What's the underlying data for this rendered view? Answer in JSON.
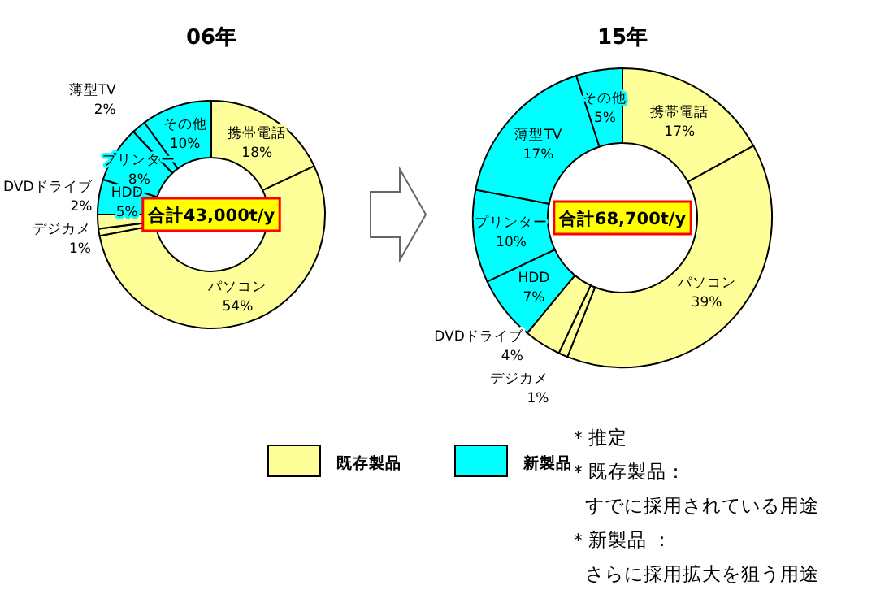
{
  "chart_data": [
    {
      "type": "donut",
      "title": "06年",
      "categories": [
        "携帯電話",
        "パソコン",
        "デジカメ",
        "DVDドライブ",
        "HDD",
        "プリンター",
        "薄型TV",
        "その他"
      ],
      "values": [
        18,
        54,
        1,
        2,
        5,
        8,
        2,
        10
      ],
      "value_labels": [
        "18%",
        "54%",
        "1%",
        "2%",
        "5%",
        "8%",
        "2%",
        "10%"
      ],
      "colors": [
        "#ffff99",
        "#ffff99",
        "#ffff99",
        "#ffff99",
        "#00ffff",
        "#00ffff",
        "#00ffff",
        "#00ffff"
      ],
      "annotations": [
        "合計43,000t/y"
      ]
    },
    {
      "type": "donut",
      "title": "15年",
      "categories": [
        "携帯電話",
        "パソコン",
        "デジカメ",
        "DVDドライブ",
        "HDD",
        "プリンター",
        "薄型TV",
        "その他"
      ],
      "values": [
        17,
        39,
        1,
        4,
        7,
        10,
        17,
        5
      ],
      "value_labels": [
        "17%",
        "39%",
        "1%",
        "4%",
        "7%",
        "10%",
        "17%",
        "5%"
      ],
      "colors": [
        "#ffff99",
        "#ffff99",
        "#ffff99",
        "#ffff99",
        "#00ffff",
        "#00ffff",
        "#00ffff",
        "#00ffff"
      ],
      "annotations": [
        "合計68,700t/y"
      ]
    },
    {
      "type": "other",
      "legend": "bottom",
      "series": [
        {
          "name": "既存製品",
          "color": "#ffff99"
        },
        {
          "name": "新製品",
          "color": "#00ffff"
        }
      ],
      "annotations": [
        "＊推定",
        "＊既存製品：すでに採用されている用途",
        "＊新製品 ：さらに採用拡大を狙う用途"
      ]
    }
  ]
}
